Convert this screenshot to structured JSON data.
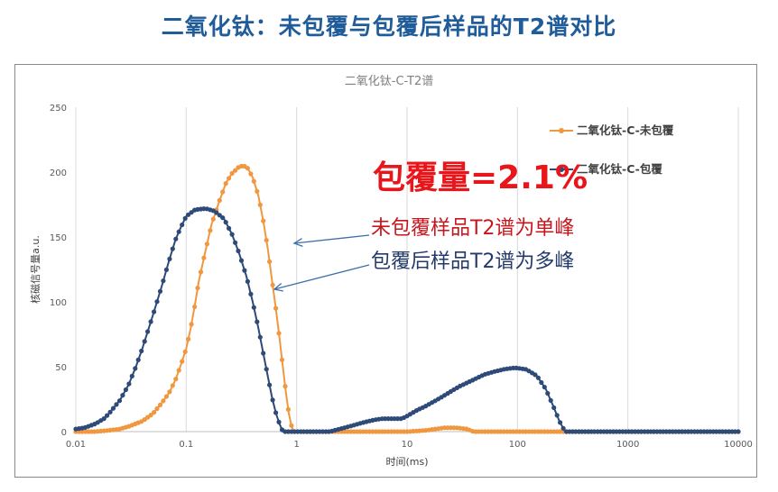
{
  "slide_title": "二氧化钛：未包覆与包覆后样品的T2谱对比",
  "chart_data": {
    "type": "line",
    "title": "二氧化钛-C-T2谱",
    "xlabel": "时间(ms)",
    "ylabel": "核磁信号量a.u.",
    "xscale": "log",
    "xlim": [
      0.01,
      10000
    ],
    "ylim": [
      0,
      250
    ],
    "x_ticks": [
      "0.01",
      "0.1",
      "1",
      "10",
      "100",
      "1000",
      "10000"
    ],
    "y_ticks": [
      "0",
      "50",
      "100",
      "150",
      "200",
      "250"
    ],
    "grid": "vertical",
    "legend_position": "top-right",
    "series": [
      {
        "name": "二氧化钛-C-未包覆",
        "color": "#f0973f",
        "points": [
          [
            0.01,
            0
          ],
          [
            0.015,
            0
          ],
          [
            0.02,
            1
          ],
          [
            0.025,
            2
          ],
          [
            0.03,
            4
          ],
          [
            0.04,
            8
          ],
          [
            0.05,
            14
          ],
          [
            0.06,
            22
          ],
          [
            0.07,
            30
          ],
          [
            0.08,
            40
          ],
          [
            0.09,
            52
          ],
          [
            0.1,
            64
          ],
          [
            0.11,
            80
          ],
          [
            0.12,
            98
          ],
          [
            0.13,
            116
          ],
          [
            0.15,
            140
          ],
          [
            0.17,
            160
          ],
          [
            0.2,
            178
          ],
          [
            0.23,
            192
          ],
          [
            0.26,
            199
          ],
          [
            0.3,
            204
          ],
          [
            0.33,
            205
          ],
          [
            0.36,
            203
          ],
          [
            0.4,
            196
          ],
          [
            0.45,
            182
          ],
          [
            0.5,
            162
          ],
          [
            0.55,
            140
          ],
          [
            0.6,
            116
          ],
          [
            0.65,
            94
          ],
          [
            0.7,
            72
          ],
          [
            0.75,
            50
          ],
          [
            0.8,
            30
          ],
          [
            0.85,
            14
          ],
          [
            0.9,
            4
          ],
          [
            0.95,
            0
          ],
          [
            1.5,
            0
          ],
          [
            3,
            0
          ],
          [
            6,
            0
          ],
          [
            10,
            0
          ],
          [
            15,
            1
          ],
          [
            18,
            2
          ],
          [
            22,
            3
          ],
          [
            28,
            3
          ],
          [
            35,
            2
          ],
          [
            40,
            0
          ],
          [
            60,
            0
          ],
          [
            100,
            0
          ],
          [
            200,
            0
          ],
          [
            300,
            0
          ],
          [
            1000,
            0
          ],
          [
            10000,
            0
          ]
        ]
      },
      {
        "name": "二氧化钛-C-包覆",
        "color": "#2e4a78",
        "points": [
          [
            0.01,
            2
          ],
          [
            0.012,
            3
          ],
          [
            0.015,
            6
          ],
          [
            0.018,
            10
          ],
          [
            0.02,
            14
          ],
          [
            0.025,
            24
          ],
          [
            0.03,
            36
          ],
          [
            0.035,
            50
          ],
          [
            0.04,
            64
          ],
          [
            0.05,
            90
          ],
          [
            0.06,
            112
          ],
          [
            0.07,
            132
          ],
          [
            0.08,
            148
          ],
          [
            0.09,
            158
          ],
          [
            0.1,
            166
          ],
          [
            0.12,
            171
          ],
          [
            0.15,
            172
          ],
          [
            0.18,
            170
          ],
          [
            0.22,
            164
          ],
          [
            0.26,
            152
          ],
          [
            0.3,
            138
          ],
          [
            0.35,
            120
          ],
          [
            0.4,
            100
          ],
          [
            0.45,
            80
          ],
          [
            0.5,
            60
          ],
          [
            0.55,
            42
          ],
          [
            0.6,
            26
          ],
          [
            0.65,
            14
          ],
          [
            0.7,
            6
          ],
          [
            0.75,
            0
          ],
          [
            1.0,
            0
          ],
          [
            2.0,
            0
          ],
          [
            3.0,
            4
          ],
          [
            4.0,
            7
          ],
          [
            5.0,
            9
          ],
          [
            6.0,
            10
          ],
          [
            8.0,
            10
          ],
          [
            9.0,
            10
          ],
          [
            10.0,
            12
          ],
          [
            12.0,
            16
          ],
          [
            15.0,
            20
          ],
          [
            20.0,
            26
          ],
          [
            25.0,
            31
          ],
          [
            30.0,
            35
          ],
          [
            40.0,
            40
          ],
          [
            50.0,
            44
          ],
          [
            60.0,
            46
          ],
          [
            75.0,
            48
          ],
          [
            90.0,
            49
          ],
          [
            100.0,
            49
          ],
          [
            120.0,
            48
          ],
          [
            150.0,
            43
          ],
          [
            180.0,
            33
          ],
          [
            210.0,
            20
          ],
          [
            240.0,
            8
          ],
          [
            270.0,
            0
          ],
          [
            300.0,
            0
          ],
          [
            1000.0,
            0
          ],
          [
            10000.0,
            0
          ]
        ]
      }
    ],
    "annotations": [
      {
        "text": "包覆量=2.1%",
        "style": "big"
      },
      {
        "text": "未包覆样品T2谱为单峰",
        "style": "red"
      },
      {
        "text": "包覆后样品T2谱为多峰",
        "style": "blue"
      }
    ]
  }
}
